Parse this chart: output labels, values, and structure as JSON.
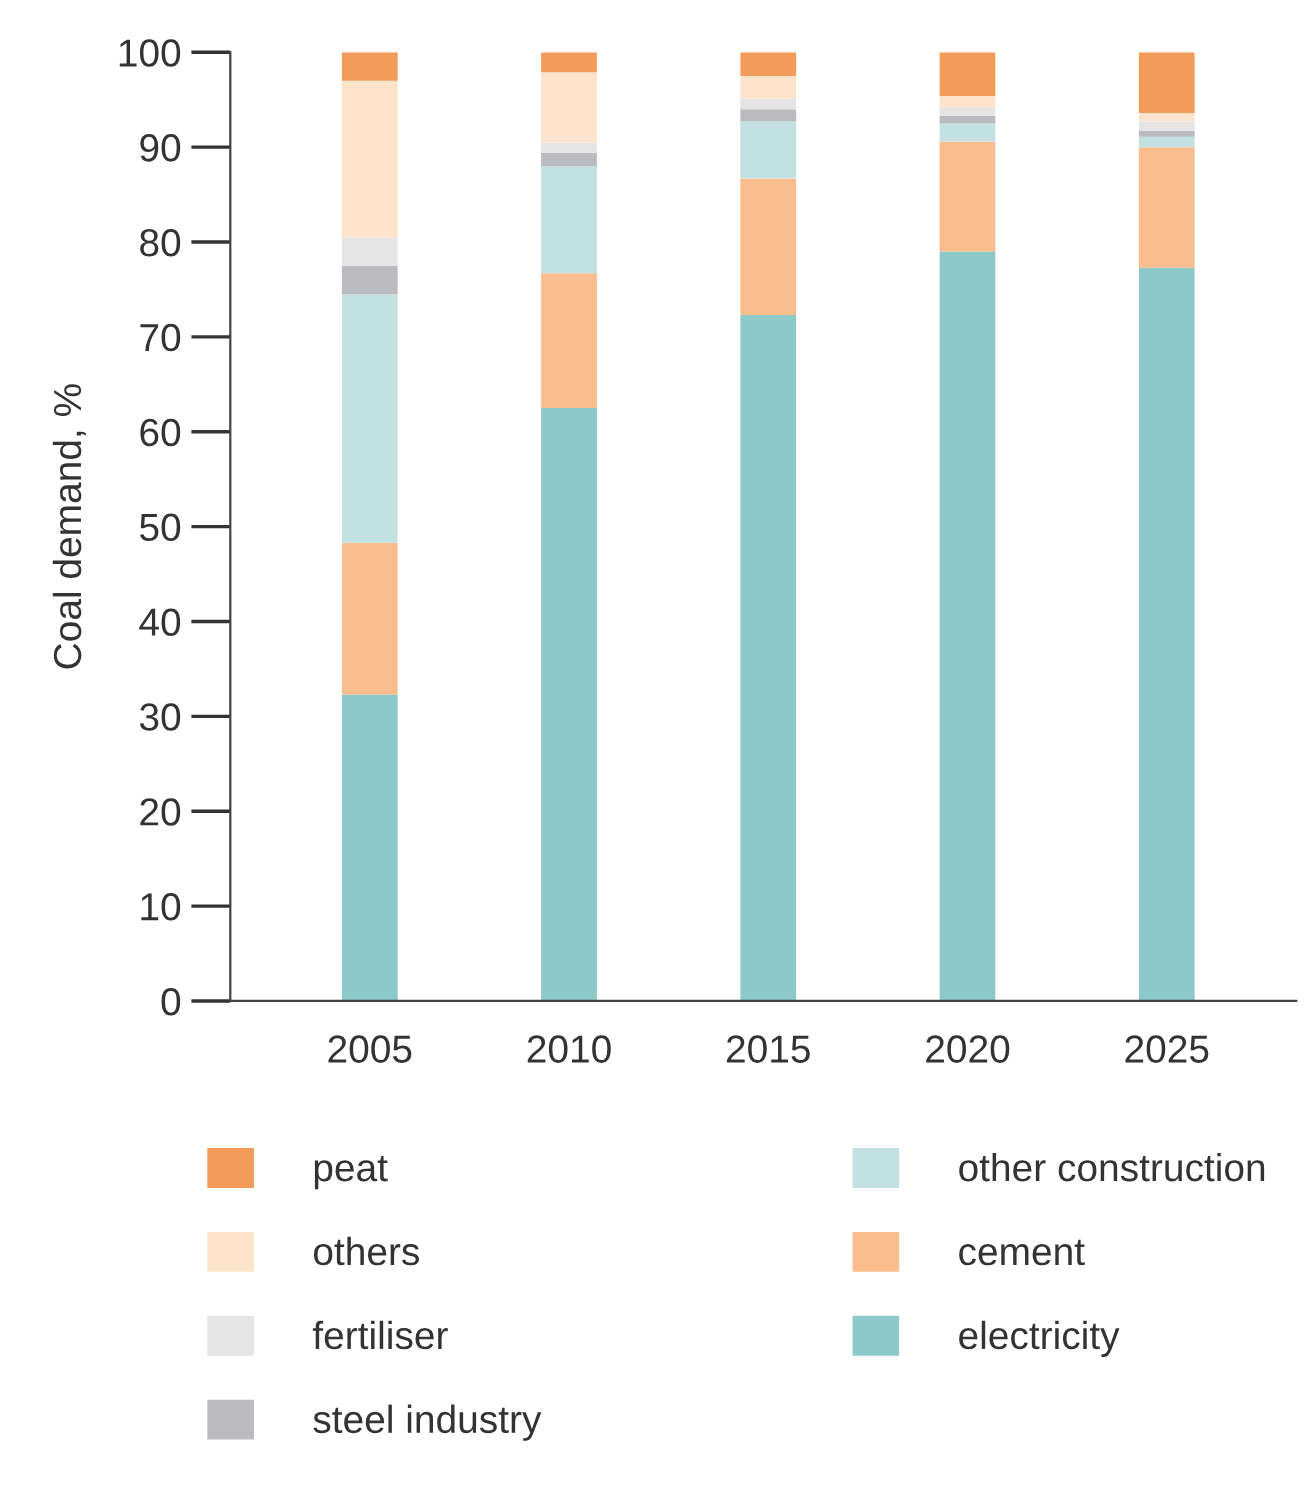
{
  "chart_data": {
    "type": "bar",
    "stacked": true,
    "ylabel": "Coal demand, %",
    "categories": [
      "2005",
      "2010",
      "2015",
      "2020",
      "2025"
    ],
    "series": [
      {
        "name": "electricity",
        "color": "#8ec9c9",
        "values": [
          32.3,
          62.5,
          72.3,
          79.0,
          77.3
        ]
      },
      {
        "name": "cement",
        "color": "#f9bd8e",
        "values": [
          16.0,
          14.2,
          14.4,
          11.6,
          12.7
        ]
      },
      {
        "name": "other construction",
        "color": "#c3e1e2",
        "values": [
          26.2,
          11.3,
          6.0,
          1.9,
          1.1
        ]
      },
      {
        "name": "steel industry",
        "color": "#bbbbbf",
        "values": [
          3.0,
          1.4,
          1.3,
          0.8,
          0.6
        ]
      },
      {
        "name": "fertiliser",
        "color": "#e5e5e6",
        "values": [
          3.0,
          1.1,
          1.1,
          0.9,
          1.0
        ]
      },
      {
        "name": "others",
        "color": "#fde3cc",
        "values": [
          16.5,
          7.4,
          2.4,
          1.2,
          0.9
        ]
      },
      {
        "name": "peat",
        "color": "#f39c5a",
        "values": [
          3.0,
          2.1,
          2.5,
          4.6,
          6.4
        ]
      }
    ],
    "ylim": [
      0,
      100
    ],
    "yticks": [
      0,
      10,
      20,
      30,
      40,
      50,
      60,
      70,
      80,
      90,
      100
    ],
    "grid": false,
    "legend": "bottom"
  }
}
